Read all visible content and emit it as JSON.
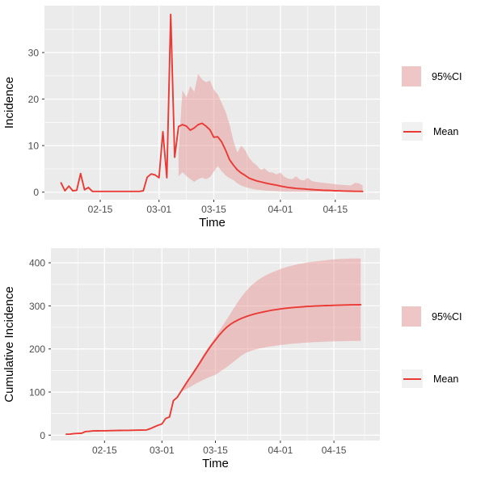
{
  "figure": {
    "background": "#ffffff",
    "panel_background": "#ebebeb",
    "grid_color": "#ffffff",
    "line_color": "#e93a35",
    "ribbon_fill": "#e88f8f",
    "ribbon_opacity": 0.45,
    "legend_ribbon_swatch": "#eec6c6",
    "tick_label_color": "#4d4d4d",
    "axis_title_color": "#000000",
    "tick_mark_color": "#333333"
  },
  "legend": {
    "ci_label": "95%CI",
    "mean_label": "Mean"
  },
  "chart_data": [
    {
      "type": "line",
      "title": "",
      "xlabel": "Time",
      "ylabel": "Incidence",
      "day_zero_date": "02-01",
      "xlim_days": [
        0,
        85.5
      ],
      "ylim": [
        -1.6,
        40.1
      ],
      "grid": true,
      "legend_position": "right",
      "x_ticks": [
        {
          "day": 14,
          "label": "02-15"
        },
        {
          "day": 29,
          "label": "03-01"
        },
        {
          "day": 43,
          "label": "03-15"
        },
        {
          "day": 60,
          "label": "04-01"
        },
        {
          "day": 74,
          "label": "04-15"
        }
      ],
      "x_minor_days": [
        7,
        21.5,
        36,
        51.5,
        67,
        82
      ],
      "y_ticks": [
        0,
        10,
        20,
        30
      ],
      "y_minor": [
        5,
        15,
        25,
        35
      ],
      "series": [
        {
          "name": "Mean",
          "kind": "line",
          "start_day": 4,
          "values": [
            2.0,
            0.3,
            1.3,
            0.3,
            0.4,
            4.0,
            0.5,
            1.0,
            0.15,
            0.15,
            0.15,
            0.15,
            0.15,
            0.15,
            0.15,
            0.15,
            0.15,
            0.15,
            0.15,
            0.15,
            0.15,
            0.3,
            3.2,
            3.9,
            3.7,
            3.1,
            13.0,
            3.1,
            38.2,
            7.5,
            14.1,
            14.5,
            14.2,
            13.3,
            13.8,
            14.5,
            14.8,
            14.2,
            13.4,
            11.8,
            11.9,
            10.8,
            9.0,
            7.0,
            5.8,
            4.8,
            4.1,
            3.6,
            3.0,
            2.7,
            2.4,
            2.2,
            2.0,
            1.8,
            1.65,
            1.5,
            1.3,
            1.15,
            1.0,
            0.9,
            0.8,
            0.75,
            0.7,
            0.6,
            0.55,
            0.5,
            0.45,
            0.4,
            0.38,
            0.35,
            0.3,
            0.28,
            0.25,
            0.22,
            0.2,
            0.18,
            0.17,
            0.15
          ]
        },
        {
          "name": "95%CI",
          "kind": "ribbon",
          "start_day": 34,
          "upper": [
            8.6,
            21.9,
            20.4,
            22.8,
            21.5,
            25.4,
            24.2,
            23.6,
            24.0,
            22.0,
            21.0,
            19.2,
            17.3,
            14.6,
            11.0,
            8.5,
            10.0,
            9.0,
            7.4,
            6.4,
            5.7,
            4.8,
            5.1,
            4.3,
            4.2,
            3.8,
            4.2,
            3.3,
            2.9,
            2.8,
            3.4,
            2.7,
            2.5,
            3.1,
            2.4,
            2.2,
            2.1,
            2.0,
            1.9,
            1.8,
            1.7,
            1.6,
            1.55,
            1.5,
            1.45,
            2.0,
            1.9,
            1.4
          ],
          "lower": [
            3.4,
            4.3,
            3.5,
            2.8,
            2.2,
            2.8,
            3.1,
            2.8,
            3.2,
            4.4,
            5.6,
            4.5,
            3.6,
            3.0,
            2.6,
            1.9,
            1.4,
            1.1,
            0.9,
            0.65,
            0.5,
            0.45,
            0.35,
            0.3,
            0.25,
            0.2,
            0.15,
            0.12,
            0.1,
            0.1,
            0.1,
            0.1,
            0.1,
            0.1,
            0.1,
            0.1,
            0.1,
            0.1,
            0.1,
            0.1,
            0.1,
            0.1,
            0.1,
            0.1,
            0.1,
            0.1,
            0.1,
            0.1
          ]
        }
      ]
    },
    {
      "type": "line",
      "title": "",
      "xlabel": "Time",
      "ylabel": "Cumulative Incidence",
      "day_zero_date": "02-01",
      "xlim_days": [
        0,
        86
      ],
      "ylim": [
        -12.6,
        434
      ],
      "grid": true,
      "legend_position": "right",
      "x_ticks": [
        {
          "day": 14,
          "label": "02-15"
        },
        {
          "day": 29,
          "label": "03-01"
        },
        {
          "day": 43,
          "label": "03-15"
        },
        {
          "day": 60,
          "label": "04-01"
        },
        {
          "day": 74,
          "label": "04-15"
        }
      ],
      "x_minor_days": [
        7,
        21.5,
        36,
        51.5,
        67,
        82
      ],
      "y_ticks": [
        0,
        100,
        200,
        300,
        400
      ],
      "y_minor": [
        50,
        150,
        250,
        350
      ],
      "series": [
        {
          "name": "Mean",
          "kind": "line",
          "start_day": 4,
          "values": [
            2.0,
            2.3,
            3.6,
            3.9,
            4.3,
            8.3,
            8.8,
            9.8,
            9.9,
            10.1,
            10.2,
            10.4,
            10.5,
            10.7,
            10.8,
            11.0,
            11.1,
            11.3,
            11.4,
            11.6,
            11.7,
            12.0,
            15.2,
            19.1,
            22.8,
            25.9,
            38.9,
            42.0,
            80.2,
            87.7,
            101.5,
            115.4,
            129.0,
            141.7,
            154.9,
            168.8,
            182.9,
            196.5,
            209.3,
            220.6,
            232.0,
            242.3,
            250.9,
            257.6,
            263.1,
            267.7,
            271.6,
            275.1,
            278.0,
            280.6,
            282.9,
            285.0,
            286.9,
            288.6,
            290.2,
            291.6,
            292.9,
            294.0,
            295.0,
            295.9,
            296.6,
            297.3,
            298.0,
            298.6,
            299.1,
            299.6,
            300.0,
            300.4,
            300.7,
            301.0,
            301.3,
            301.5,
            301.8,
            302.0,
            302.2,
            302.4,
            302.5,
            302.6
          ]
        },
        {
          "name": "95%CI",
          "kind": "ribbon",
          "start_day": 34,
          "upper": [
            101.5,
            116,
            130,
            145,
            159,
            174,
            189,
            202,
            215,
            228,
            242,
            256,
            269,
            283,
            297,
            311,
            323,
            334,
            344,
            352,
            359,
            365,
            370,
            374.5,
            378.5,
            382,
            385.5,
            388.5,
            391,
            393.5,
            395.5,
            397.5,
            399,
            400.5,
            402,
            403,
            404,
            405,
            406,
            407,
            407.8,
            408.4,
            409,
            409.4,
            409.7,
            410,
            410.2,
            410.4
          ],
          "lower": [
            100,
            105,
            110,
            115,
            120,
            124.5,
            129,
            133,
            136.5,
            140,
            146,
            152,
            158,
            165,
            172,
            179,
            186,
            191,
            194.5,
            197.5,
            200,
            202,
            203.8,
            205.3,
            206.6,
            207.8,
            209,
            210,
            211,
            212,
            212.8,
            213.5,
            214.2,
            214.8,
            215.3,
            215.8,
            216.2,
            216.6,
            217,
            217.3,
            217.6,
            217.8,
            218,
            218.2,
            218.4,
            218.5,
            218.6,
            218.7
          ]
        }
      ]
    }
  ]
}
